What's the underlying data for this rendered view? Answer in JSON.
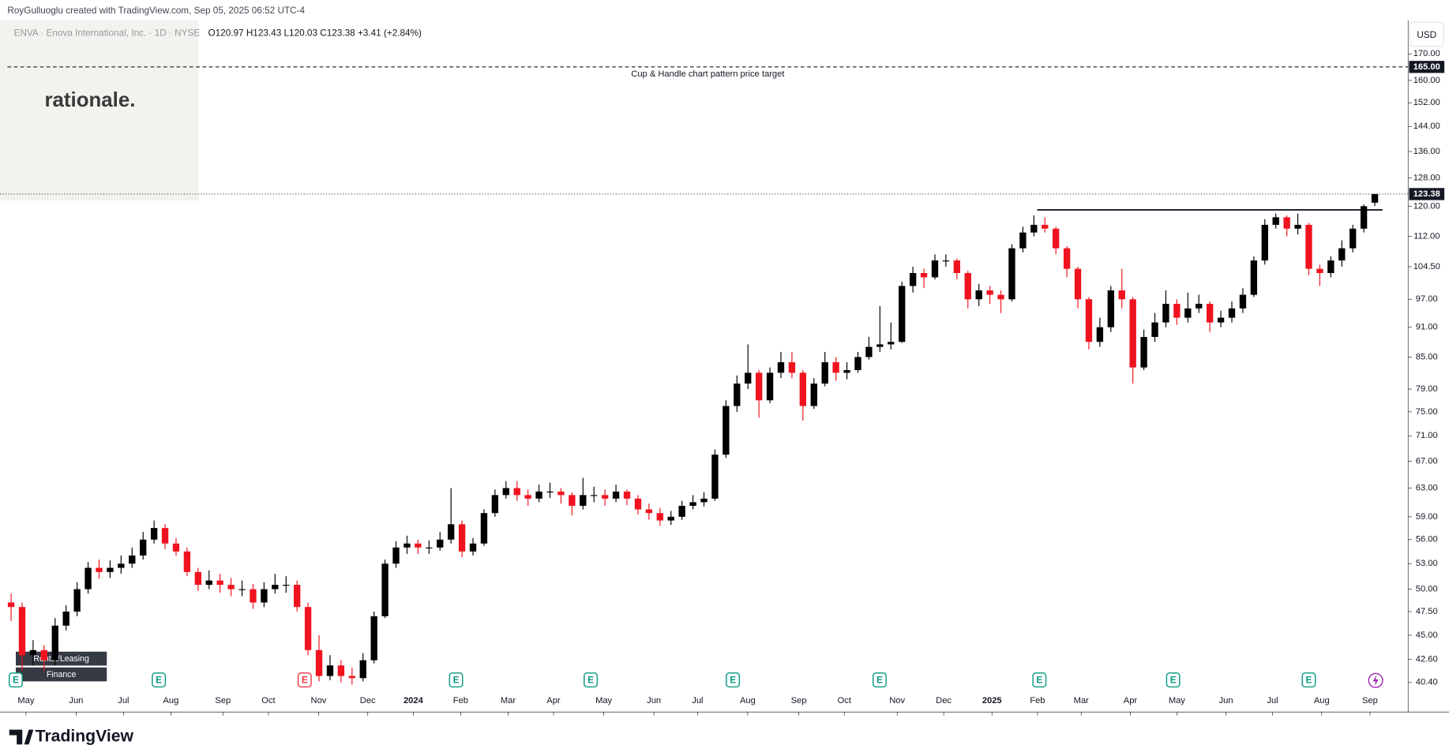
{
  "chart_data": {
    "type": "candlestick",
    "header": "RoyGulluoglu created with TradingView.com, Sep 05, 2025 06:52 UTC-4",
    "symbol": "ENVA · Enova International, Inc. · 1D · NYSE",
    "ohlc_text": "O120.97  H123.43  L120.03  C123.38  +3.41 (+2.84%)",
    "watermark": "rationale.",
    "currency": "USD",
    "tags": [
      "Rental/Leasing",
      "Finance"
    ],
    "footer": "TradingView",
    "up_color": "#000000",
    "down_color": "#f0131f",
    "log_scale": true,
    "open": [
      48.5,
      48,
      43,
      43.5,
      42.5,
      46,
      47.5,
      50,
      52.5,
      52,
      52.5,
      53,
      54,
      56,
      57.5,
      55.5,
      54.5,
      52,
      50.5,
      51,
      50.5,
      50,
      50,
      48.5,
      50,
      50.5,
      50.5,
      48,
      43.5,
      41,
      42,
      41,
      40.8,
      42.5,
      47,
      53,
      55,
      55.5,
      55,
      55,
      56,
      58,
      54.5,
      55.5,
      59.5,
      62,
      63,
      62,
      61.5,
      62.5,
      62.5,
      62,
      60.5,
      62,
      62,
      61.5,
      62.5,
      61.5,
      60,
      59.5,
      58.5,
      59,
      60.5,
      61,
      61.5,
      68,
      76,
      80,
      82,
      77,
      82,
      84,
      82,
      76,
      80,
      84,
      82,
      82.5,
      85,
      87,
      87.5,
      88,
      100,
      103,
      102,
      106,
      106,
      103,
      97,
      99,
      98,
      97,
      109,
      113,
      115,
      114,
      109,
      104,
      97,
      88,
      91,
      99,
      97,
      83,
      89,
      92,
      96,
      93,
      95,
      96,
      92,
      93,
      95,
      98,
      106,
      115,
      117,
      114,
      115,
      104,
      103,
      106,
      109,
      114,
      120.97
    ],
    "high": [
      49.5,
      48.5,
      44.5,
      44,
      46.8,
      48.2,
      50.8,
      53.2,
      53.5,
      53.4,
      54,
      55,
      57,
      58.5,
      58,
      56.2,
      55,
      52.5,
      52.2,
      51.8,
      51.3,
      51,
      50.6,
      50.8,
      51.8,
      51.5,
      51,
      48.5,
      45,
      43,
      42.5,
      41.8,
      43.2,
      47.5,
      53.5,
      55.8,
      56.5,
      56,
      55.9,
      57,
      63,
      58.5,
      56.2,
      60,
      62.8,
      64,
      64,
      62.8,
      63.5,
      63.8,
      63,
      62.4,
      64.5,
      63.2,
      62.8,
      63.5,
      62.8,
      62,
      60.8,
      60.2,
      59.8,
      61.2,
      62,
      62.4,
      68.8,
      77,
      81.5,
      87.5,
      82.5,
      83,
      86,
      86,
      82.5,
      81,
      86,
      85,
      84,
      86,
      89,
      95.5,
      92,
      101,
      104.5,
      104,
      107.5,
      107.5,
      106.5,
      103.5,
      100.5,
      100,
      99,
      110,
      114.5,
      117.5,
      117,
      114.5,
      109.5,
      104.5,
      97.5,
      93,
      100,
      104,
      97.5,
      90.5,
      94,
      99,
      97,
      98.5,
      98,
      96.5,
      94.5,
      96.5,
      99.5,
      107,
      116.5,
      118,
      117.5,
      118,
      115.5,
      105,
      107,
      111,
      115,
      120.5,
      123.43
    ],
    "low": [
      46.5,
      41.5,
      42,
      41.5,
      42,
      45.5,
      47,
      49.5,
      51.2,
      51.3,
      51.8,
      52.5,
      53.5,
      55.5,
      54.8,
      54,
      51.5,
      49.8,
      50,
      49.6,
      49.2,
      49.2,
      47.8,
      48,
      49.5,
      49.6,
      47.5,
      43,
      40.5,
      40.6,
      40.4,
      40.2,
      40.5,
      42.2,
      46.8,
      52.5,
      54.2,
      54.2,
      54.2,
      54.6,
      55.5,
      53.8,
      54,
      55.2,
      59,
      61.5,
      61.2,
      60.5,
      61,
      61.6,
      60.8,
      59.2,
      60,
      61,
      60.5,
      61,
      60.6,
      59.3,
      58.6,
      57.8,
      57.9,
      58.6,
      60,
      60.4,
      61.2,
      67.5,
      75,
      79,
      74,
      76.5,
      81,
      81,
      73.5,
      75.5,
      79.5,
      80.5,
      80.8,
      82,
      84.5,
      86,
      86.5,
      87.8,
      98.5,
      99.5,
      101.5,
      104.5,
      101.5,
      95,
      95.5,
      96,
      94,
      96.5,
      108,
      112,
      113,
      107.5,
      102,
      95,
      86.5,
      87,
      90,
      95,
      80,
      82.5,
      88,
      91,
      91.5,
      92,
      94,
      90,
      91,
      92,
      94,
      97.5,
      105,
      114,
      112,
      112.5,
      102.5,
      100,
      102,
      104.5,
      108,
      113,
      120.03
    ],
    "close": [
      48,
      43,
      43.5,
      42.5,
      46,
      47.5,
      50,
      52.5,
      52,
      52.5,
      53,
      54,
      56,
      57.5,
      55.5,
      54.5,
      52,
      50.5,
      51,
      50.5,
      50,
      50,
      48.5,
      50,
      50.5,
      50.5,
      48,
      43.5,
      41,
      42,
      41,
      40.8,
      42.5,
      47,
      53,
      55,
      55.5,
      55,
      55,
      56,
      58,
      54.5,
      55.5,
      59.5,
      62,
      63,
      62,
      61.5,
      62.5,
      62.5,
      62,
      60.5,
      62,
      62,
      61.5,
      62.5,
      61.5,
      60,
      59.5,
      58.5,
      59,
      60.5,
      61,
      61.5,
      68,
      76,
      80,
      82,
      77,
      82,
      84,
      82,
      76,
      80,
      84,
      82,
      82.5,
      85,
      87,
      87.5,
      88,
      100,
      103,
      102,
      106,
      106,
      103,
      97,
      99,
      98,
      97,
      109,
      113,
      115,
      114,
      109,
      104,
      97,
      88,
      91,
      99,
      97,
      83,
      89,
      92,
      96,
      93,
      95,
      96,
      92,
      93,
      95,
      98,
      106,
      115,
      117,
      114,
      115,
      104,
      103,
      106,
      109,
      114,
      120,
      123.38
    ],
    "xlim": [
      -1.01,
      127.03
    ],
    "xticks": [
      {
        "value": 1.35,
        "label": "May"
      },
      {
        "value": 5.91,
        "label": "Jun"
      },
      {
        "value": 10.22,
        "label": "Jul"
      },
      {
        "value": 14.53,
        "label": "Aug"
      },
      {
        "value": 19.26,
        "label": "Sep"
      },
      {
        "value": 23.4,
        "label": "Oct"
      },
      {
        "value": 27.96,
        "label": "Nov"
      },
      {
        "value": 32.43,
        "label": "Dec"
      },
      {
        "value": 36.57,
        "label": "2024"
      },
      {
        "value": 40.88,
        "label": "Feb"
      },
      {
        "value": 45.19,
        "label": "Mar"
      },
      {
        "value": 49.32,
        "label": "Apr"
      },
      {
        "value": 53.89,
        "label": "May"
      },
      {
        "value": 58.45,
        "label": "Jun"
      },
      {
        "value": 62.42,
        "label": "Jul"
      },
      {
        "value": 66.98,
        "label": "Aug"
      },
      {
        "value": 71.62,
        "label": "Sep"
      },
      {
        "value": 75.76,
        "label": "Oct"
      },
      {
        "value": 80.57,
        "label": "Nov"
      },
      {
        "value": 84.8,
        "label": "Dec"
      },
      {
        "value": 89.19,
        "label": "2025"
      },
      {
        "value": 93.33,
        "label": "Feb"
      },
      {
        "value": 97.3,
        "label": "Mar"
      },
      {
        "value": 101.77,
        "label": "Apr"
      },
      {
        "value": 106,
        "label": "May"
      },
      {
        "value": 110.47,
        "label": "Jun"
      },
      {
        "value": 114.7,
        "label": "Jul"
      },
      {
        "value": 119.17,
        "label": "Aug"
      },
      {
        "value": 123.56,
        "label": "Sep"
      }
    ],
    "ylim": [
      37.76,
      183.5
    ],
    "yticks": [
      {
        "value": 40.4,
        "label": "40.40"
      },
      {
        "value": 42.6,
        "label": "42.60"
      },
      {
        "value": 45,
        "label": "45.00"
      },
      {
        "value": 47.5,
        "label": "47.50"
      },
      {
        "value": 50,
        "label": "50.00"
      },
      {
        "value": 53,
        "label": "53.00"
      },
      {
        "value": 56,
        "label": "56.00"
      },
      {
        "value": 59,
        "label": "59.00"
      },
      {
        "value": 63,
        "label": "63.00"
      },
      {
        "value": 67,
        "label": "67.00"
      },
      {
        "value": 71,
        "label": "71.00"
      },
      {
        "value": 75,
        "label": "75.00"
      },
      {
        "value": 79,
        "label": "79.00"
      },
      {
        "value": 85,
        "label": "85.00"
      },
      {
        "value": 91,
        "label": "91.00"
      },
      {
        "value": 97,
        "label": "97.00"
      },
      {
        "value": 104.5,
        "label": "104.50"
      },
      {
        "value": 112,
        "label": "112.00"
      },
      {
        "value": 120,
        "label": "120.00"
      },
      {
        "value": 128,
        "label": "128.00"
      },
      {
        "value": 136,
        "label": "136.00"
      },
      {
        "value": 144,
        "label": "144.00"
      },
      {
        "value": 152,
        "label": "152.00"
      },
      {
        "value": 160,
        "label": "160.00"
      },
      {
        "value": 170,
        "label": "170.00"
      }
    ],
    "target": {
      "value": 165,
      "label": "165.00",
      "text": "Cup & Handle chart pattern price target"
    },
    "resistance": {
      "value": 119,
      "x": [
        93.3,
        124.7
      ]
    },
    "events": [
      {
        "x": 0.42,
        "label": "E",
        "color": "#089981"
      },
      {
        "x": 13.43,
        "label": "E",
        "color": "#089981"
      },
      {
        "x": 26.69,
        "label": "E",
        "color": "#f23645"
      },
      {
        "x": 40.46,
        "label": "E",
        "color": "#089981"
      },
      {
        "x": 52.7,
        "label": "E",
        "color": "#089981"
      },
      {
        "x": 65.63,
        "label": "E",
        "color": "#089981"
      },
      {
        "x": 78.97,
        "label": "E",
        "color": "#089981"
      },
      {
        "x": 93.5,
        "label": "E",
        "color": "#089981"
      },
      {
        "x": 105.66,
        "label": "E",
        "color": "#089981"
      },
      {
        "x": 118,
        "label": "E",
        "color": "#089981"
      }
    ]
  }
}
